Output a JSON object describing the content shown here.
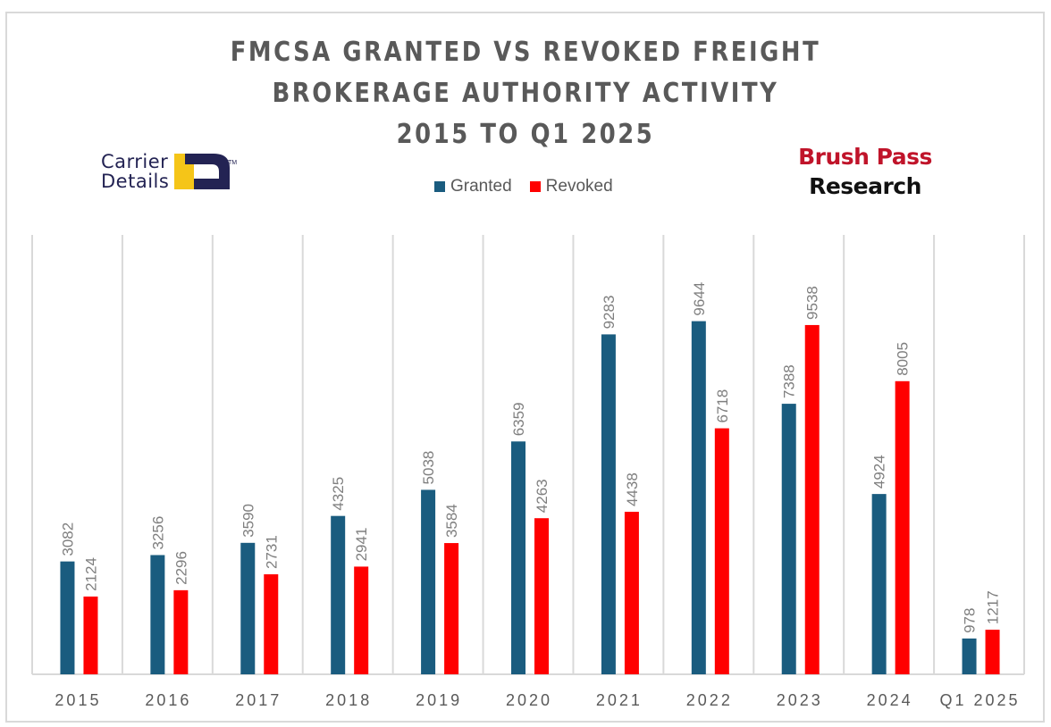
{
  "title_lines": [
    "FMCSA GRANTED VS REVOKED FREIGHT",
    "BROKERAGE AUTHORITY ACTIVITY",
    "2015 TO Q1 2025"
  ],
  "logos": {
    "carrier_details": {
      "line1": "Carrier",
      "line2": "Details",
      "tm": "TM",
      "navy": "#232353",
      "yellow": "#f5c518"
    },
    "brush_pass": {
      "line1": "Brush Pass",
      "line2": "Research"
    }
  },
  "colors": {
    "granted": "#1a5c7f",
    "revoked": "#ff0000",
    "gridline": "#d9d9d9"
  },
  "chart_data": {
    "type": "bar",
    "title": "FMCSA Granted vs Revoked Freight Brokerage Authority Activity 2015 to Q1 2025",
    "xlabel": "",
    "ylabel": "",
    "categories": [
      "2015",
      "2016",
      "2017",
      "2018",
      "2019",
      "2020",
      "2021",
      "2022",
      "2023",
      "2024",
      "Q1 2025"
    ],
    "series": [
      {
        "name": "Granted",
        "color": "#1a5c7f",
        "values": [
          3082,
          3256,
          3590,
          4325,
          5038,
          6359,
          9283,
          9644,
          7388,
          4924,
          978
        ]
      },
      {
        "name": "Revoked",
        "color": "#ff0000",
        "values": [
          2124,
          2296,
          2731,
          2941,
          3584,
          4263,
          4438,
          6718,
          9538,
          8005,
          1217
        ]
      }
    ],
    "ylim": [
      0,
      10000
    ],
    "legend": "top-center",
    "grid": "vertical category separators",
    "data_labels": true
  }
}
